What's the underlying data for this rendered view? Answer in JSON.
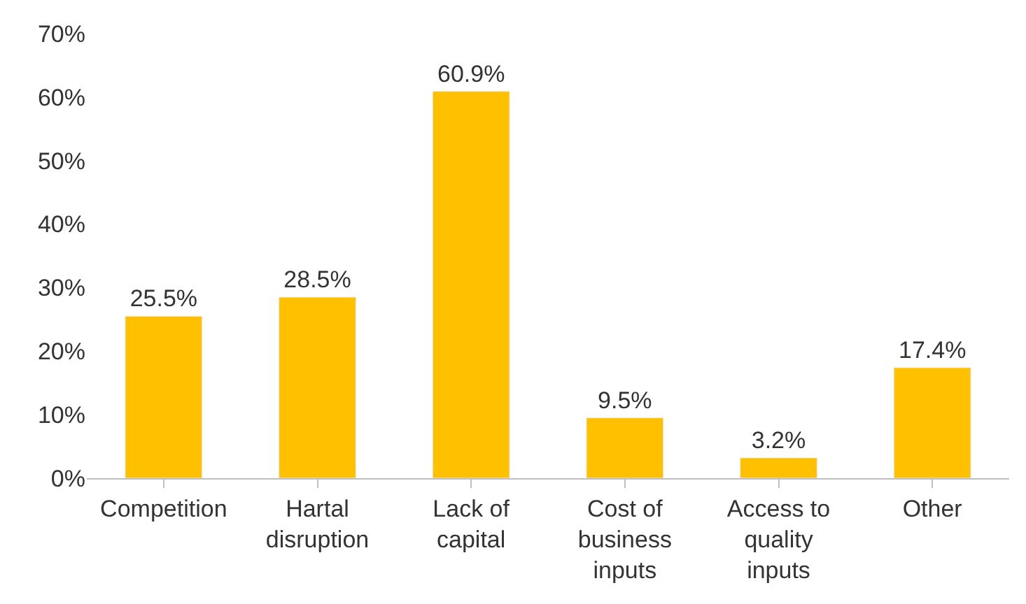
{
  "chart_data": {
    "type": "bar",
    "categories": [
      "Competition",
      "Hartal disruption",
      "Lack of capital",
      "Cost of business inputs",
      "Access to quality inputs",
      "Other"
    ],
    "values": [
      25.5,
      28.5,
      60.9,
      9.5,
      3.2,
      17.4
    ],
    "value_labels": [
      "25.5%",
      "28.5%",
      "60.9%",
      "9.5%",
      "3.2%",
      "17.4%"
    ],
    "color": "#ffc000",
    "ylim": [
      0,
      70
    ],
    "yticks": [
      {
        "value": 0,
        "label": "0%"
      },
      {
        "value": 10,
        "label": "10%"
      },
      {
        "value": 20,
        "label": "20%"
      },
      {
        "value": 30,
        "label": "30%"
      },
      {
        "value": 40,
        "label": "40%"
      },
      {
        "value": 50,
        "label": "50%"
      },
      {
        "value": 60,
        "label": "60%"
      },
      {
        "value": 70,
        "label": "70%"
      }
    ],
    "legend": false
  }
}
